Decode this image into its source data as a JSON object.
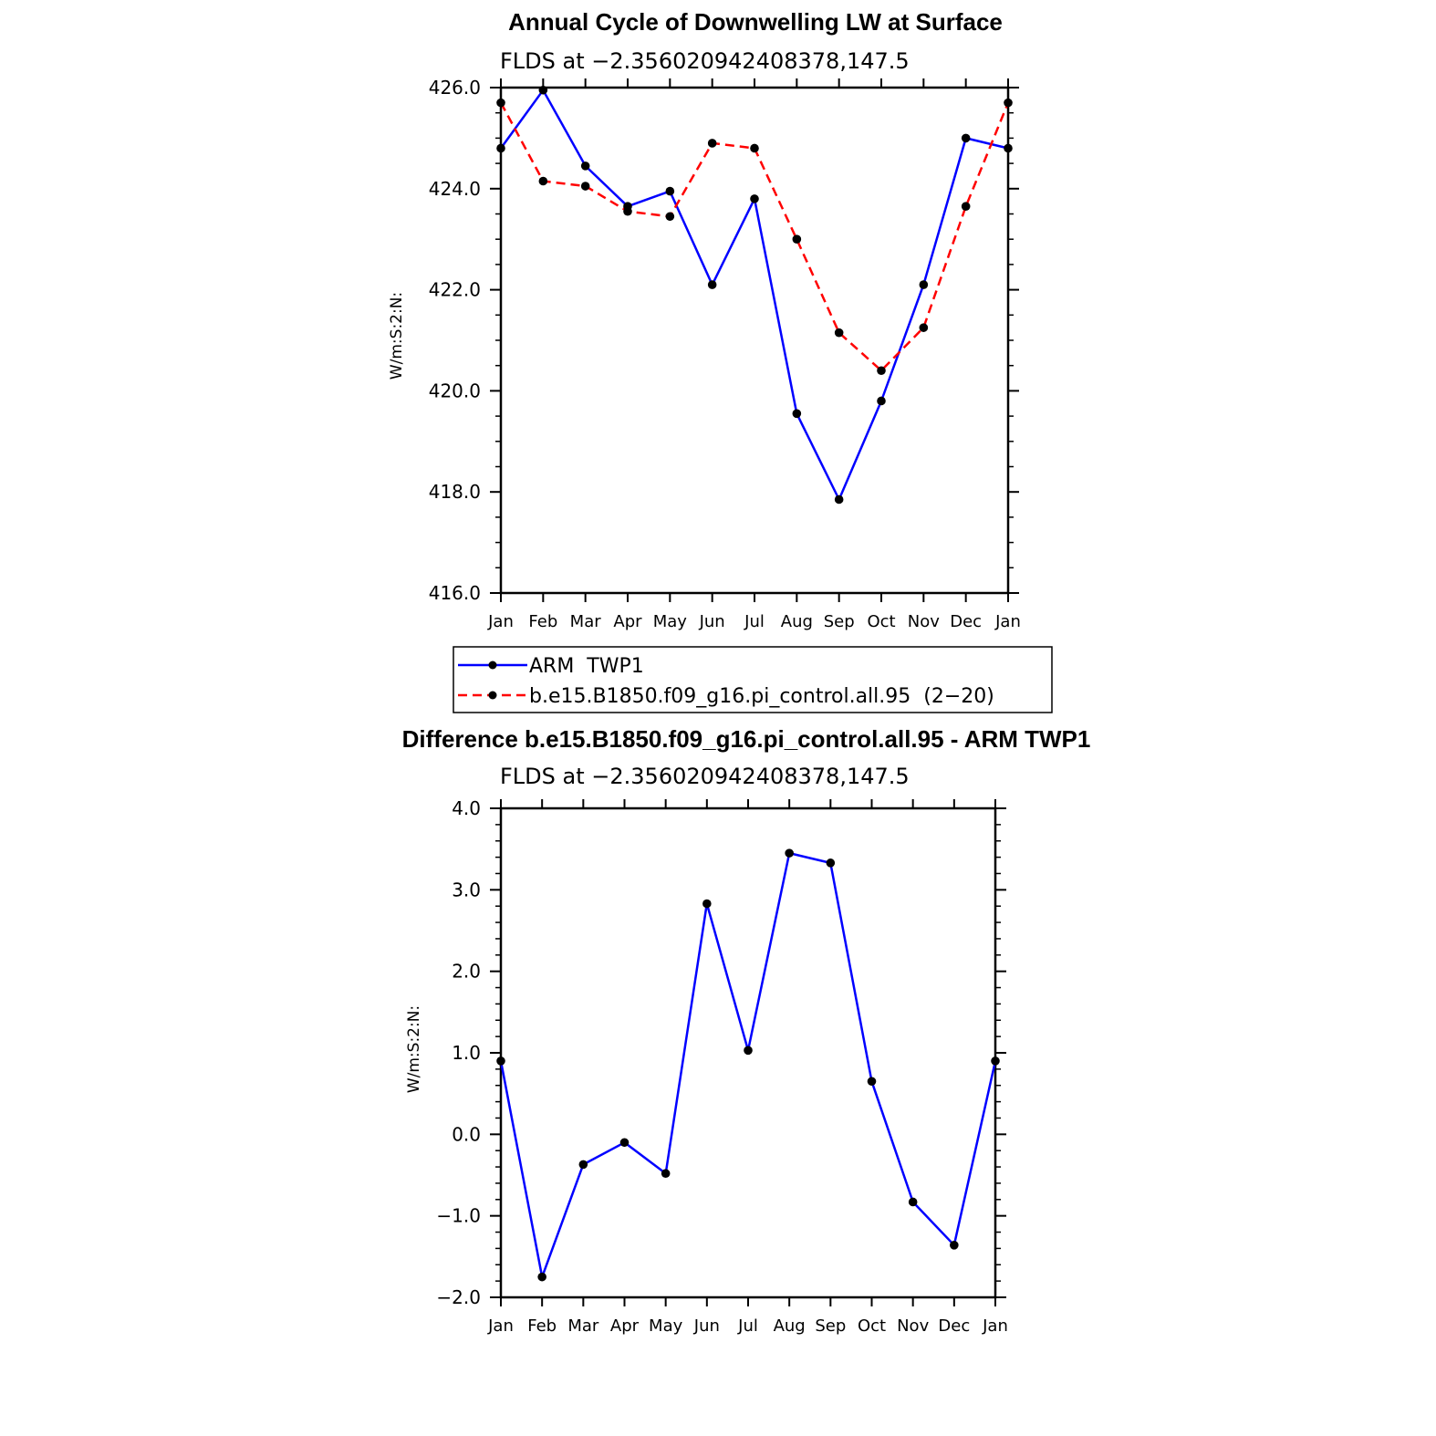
{
  "chart_data": [
    {
      "type": "line",
      "title": "Annual Cycle of Downwelling LW at Surface",
      "subtitle": "FLDS at −2.356020942408378,147.5",
      "ylabel": "W/m:S:2:N:",
      "xlabel": "",
      "categories": [
        "Jan",
        "Feb",
        "Mar",
        "Apr",
        "May",
        "Jun",
        "Jul",
        "Aug",
        "Sep",
        "Oct",
        "Nov",
        "Dec",
        "Jan"
      ],
      "ylim": [
        416.0,
        426.0
      ],
      "yticks": [
        "416.0",
        "418.0",
        "420.0",
        "422.0",
        "424.0",
        "426.0"
      ],
      "series": [
        {
          "name": "ARM  TWP1",
          "color": "#0000ff",
          "dash": "solid",
          "values": [
            424.8,
            425.95,
            424.45,
            423.65,
            423.95,
            422.1,
            423.8,
            419.55,
            417.85,
            419.8,
            422.1,
            425.0,
            424.8
          ]
        },
        {
          "name": "b.e15.B1850.f09_g16.pi_control.all.95  (2−20)",
          "color": "#ff0000",
          "dash": "dashed",
          "values": [
            425.7,
            424.15,
            424.05,
            423.55,
            423.45,
            424.9,
            424.8,
            423.0,
            421.15,
            420.4,
            421.25,
            423.65,
            425.7
          ]
        }
      ]
    },
    {
      "type": "line",
      "title": "Difference b.e15.B1850.f09_g16.pi_control.all.95 - ARM TWP1",
      "subtitle": "FLDS at −2.356020942408378,147.5",
      "ylabel": "W/m:S:2:N:",
      "xlabel": "",
      "categories": [
        "Jan",
        "Feb",
        "Mar",
        "Apr",
        "May",
        "Jun",
        "Jul",
        "Aug",
        "Sep",
        "Oct",
        "Nov",
        "Dec",
        "Jan"
      ],
      "ylim": [
        -2.0,
        4.0
      ],
      "yticks": [
        "−2.0",
        "−1.0",
        "0.0",
        "1.0",
        "2.0",
        "3.0",
        "4.0"
      ],
      "series": [
        {
          "name": "Difference",
          "color": "#0000ff",
          "dash": "solid",
          "values": [
            0.9,
            -1.75,
            -0.37,
            -0.1,
            -0.48,
            2.83,
            1.03,
            3.45,
            3.33,
            0.65,
            -0.83,
            -1.36,
            0.9
          ]
        }
      ]
    }
  ]
}
